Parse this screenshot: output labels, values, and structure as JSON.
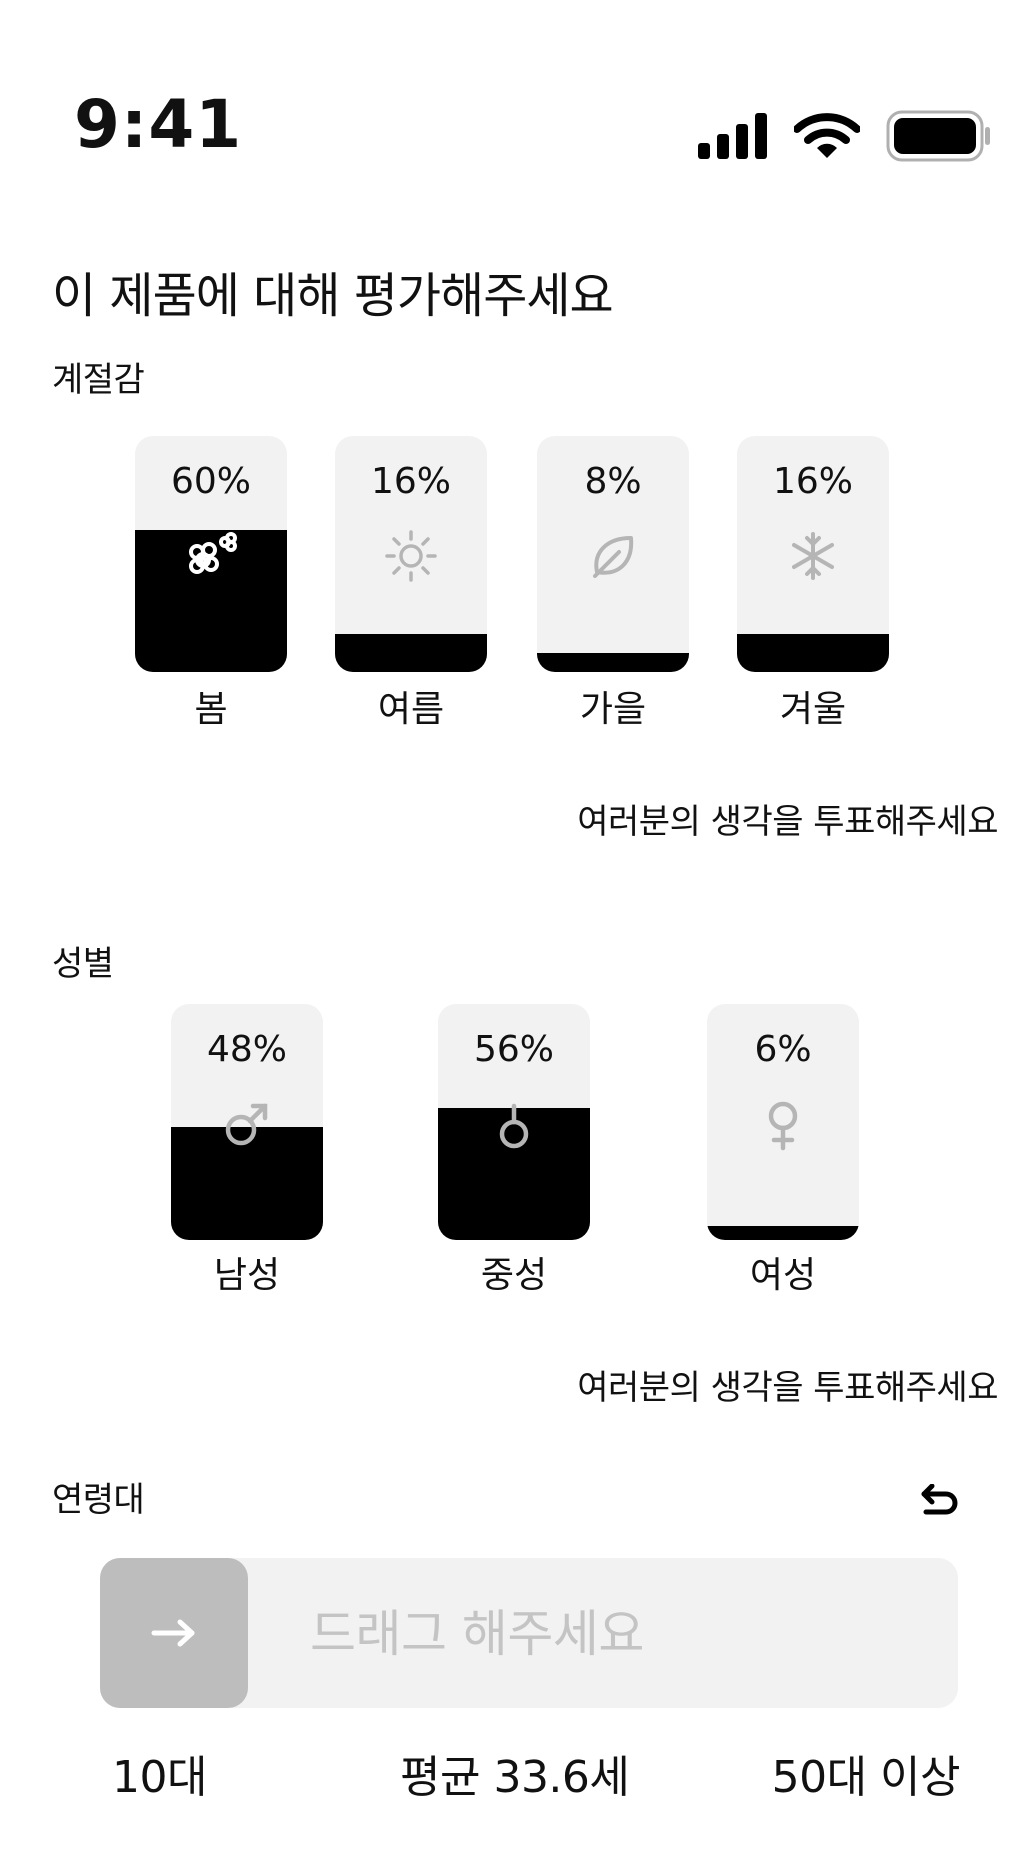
{
  "status_bar": {
    "time": "9:41"
  },
  "page_title": "이 제품에 대해 평가해주세요",
  "season": {
    "title": "계절감",
    "items": [
      {
        "label": "봄",
        "percent_text": "60%",
        "value": 60,
        "icon": "flower-icon"
      },
      {
        "label": "여름",
        "percent_text": "16%",
        "value": 16,
        "icon": "sun-icon"
      },
      {
        "label": "가을",
        "percent_text": "8%",
        "value": 8,
        "icon": "leaf-icon"
      },
      {
        "label": "겨울",
        "percent_text": "16%",
        "value": 16,
        "icon": "snowflake-icon"
      }
    ],
    "hint": "여러분의 생각을 투표해주세요"
  },
  "gender": {
    "title": "성별",
    "items": [
      {
        "label": "남성",
        "percent_text": "48%",
        "value": 48,
        "icon": "male-icon"
      },
      {
        "label": "중성",
        "percent_text": "56%",
        "value": 56,
        "icon": "neutral-icon"
      },
      {
        "label": "여성",
        "percent_text": "6%",
        "value": 6,
        "icon": "female-icon"
      }
    ],
    "hint": "여러분의 생각을 투표해주세요"
  },
  "age": {
    "title": "연령대",
    "slider_placeholder": "드래그 해주세요",
    "min_label": "10대",
    "average_label": "평균 33.6세",
    "max_label": "50대 이상"
  },
  "colors": {
    "fill": "#000000",
    "card_bg": "#f2f2f2",
    "handle": "#bdbdbd",
    "icon_gray": "#b5b5b5"
  }
}
